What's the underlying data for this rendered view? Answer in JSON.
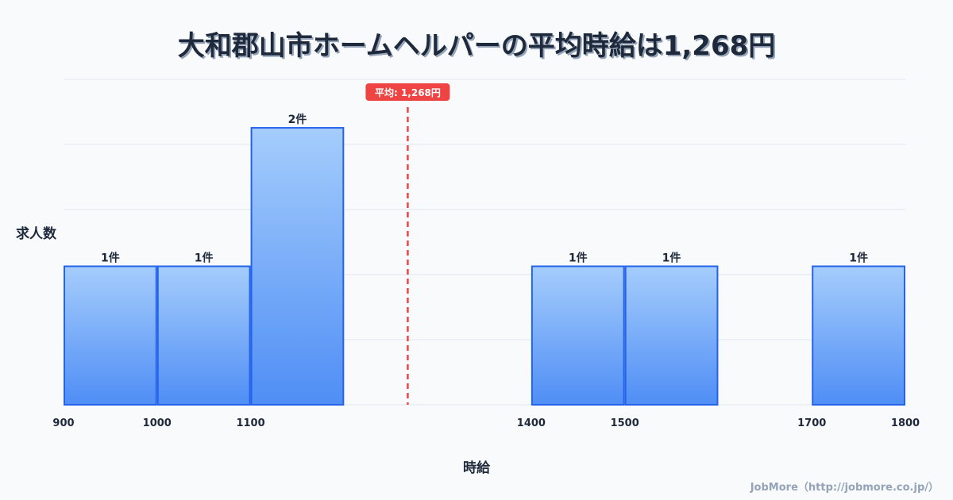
{
  "chart_data": {
    "type": "bar",
    "title": "大和郡山市ホームヘルパーの平均時給は1,268円",
    "xlabel": "時給",
    "ylabel": "求人数",
    "bins": [
      {
        "from": 900,
        "to": 1000,
        "value": 1,
        "label": "1件"
      },
      {
        "from": 1000,
        "to": 1100,
        "value": 1,
        "label": "1件"
      },
      {
        "from": 1100,
        "to": 1200,
        "value": 2,
        "label": "2件"
      },
      {
        "from": 1400,
        "to": 1500,
        "value": 1,
        "label": "1件"
      },
      {
        "from": 1500,
        "to": 1600,
        "value": 1,
        "label": "1件"
      },
      {
        "from": 1700,
        "to": 1800,
        "value": 1,
        "label": "1件"
      }
    ],
    "x_ticks": [
      "900",
      "1000",
      "1100",
      "1400",
      "1500",
      "1700",
      "1800"
    ],
    "xlim": [
      900,
      1800
    ],
    "ylim": [
      0,
      2.35
    ],
    "mean": {
      "value": 1268,
      "label": "平均: 1,268円",
      "color": "#ef4444"
    },
    "bar_color_top": "#a5cdfc",
    "bar_color_bottom": "#4f8ef5",
    "bar_border": "#2563eb",
    "grid": true
  },
  "footer": "JobMore（http://jobmore.co.jp/）"
}
